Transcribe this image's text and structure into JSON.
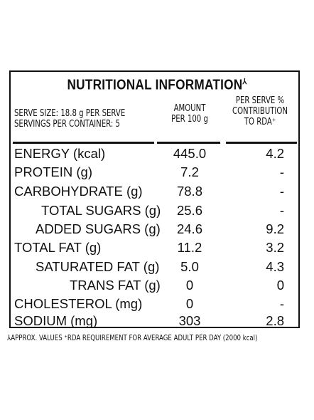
{
  "title": "NUTRITIONAL INFORMATION",
  "title_mark": "⅄",
  "serve_size": "SERVE SIZE: 18.8 g PER SERVE",
  "servings": "SERVINGS PER CONTAINER: 5",
  "amount_header": [
    "AMOUNT",
    "PER 100 g"
  ],
  "rda_header": [
    "PER SERVE %",
    "CONTRIBUTION",
    "TO RDA⁺"
  ],
  "rows": [
    {
      "label": "ENERGY (kcal)",
      "amount": "445.0",
      "rda": "4.2"
    },
    {
      "label": "PROTEIN (g)",
      "amount": "7.2",
      "rda": "-"
    },
    {
      "label": "CARBOHYDRATE (g)",
      "amount": "78.8",
      "rda": "-"
    },
    {
      "label": "TOTAL SUGARS (g)",
      "amount": "25.6",
      "rda": "-"
    },
    {
      "label": "ADDED SUGARS (g)",
      "amount": "24.6",
      "rda": "9.2"
    },
    {
      "label": "TOTAL FAT (g)",
      "amount": "11.2",
      "rda": "3.2"
    },
    {
      "label": "SATURATED FAT (g)",
      "amount": "5.0",
      "rda": "4.3"
    },
    {
      "label": "TRANS FAT (g)",
      "amount": "0",
      "rda": "0"
    },
    {
      "label": "CHOLESTEROL (mg)",
      "amount": "0",
      "rda": "-"
    },
    {
      "label": "SODIUM (mg)",
      "amount": "303",
      "rda": "2.8"
    }
  ],
  "footnote": "⅄APPROX. VALUES ⁺RDA REQUIREMENT FOR AVERAGE ADULT PER DAY (2000 kcal)"
}
